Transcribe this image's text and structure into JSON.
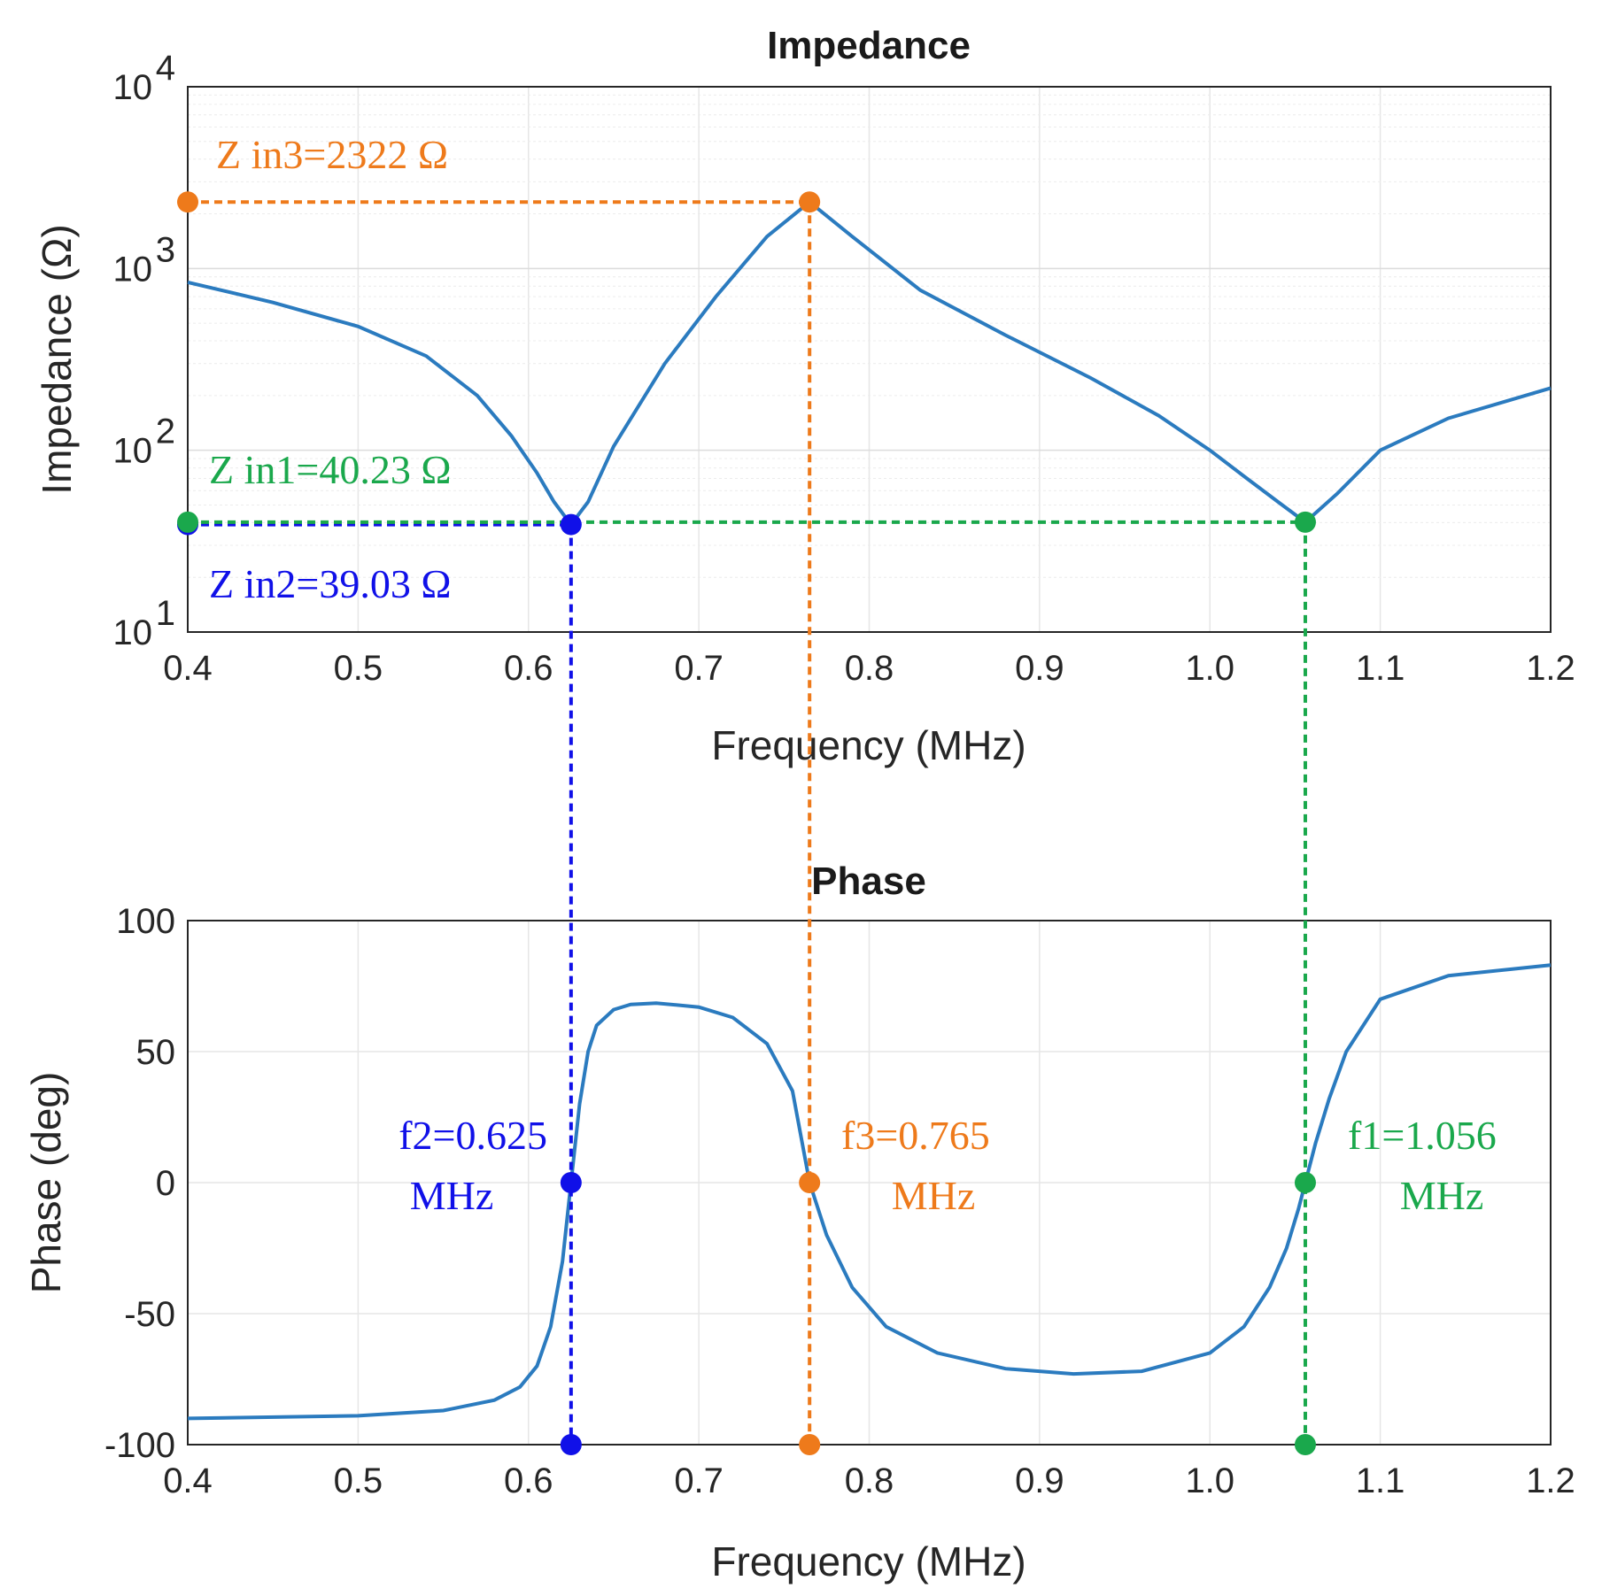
{
  "chart_data": [
    {
      "type": "line",
      "title": "Impedance",
      "xlabel": "Frequency (MHz)",
      "ylabel": "Impedance (Ω)",
      "yscale": "log",
      "xlim": [
        0.4,
        1.2
      ],
      "ylim": [
        10,
        10000
      ],
      "grid": true,
      "xticks": [
        "0.4",
        "0.5",
        "0.6",
        "0.7",
        "0.8",
        "0.9",
        "1.0",
        "1.1",
        "1.2"
      ],
      "yticks": [
        {
          "base": "10",
          "exp": "1"
        },
        {
          "base": "10",
          "exp": "2"
        },
        {
          "base": "10",
          "exp": "3"
        },
        {
          "base": "10",
          "exp": "4"
        }
      ],
      "color": "#2b7bbf",
      "series": [
        {
          "name": "Impedance",
          "x": [
            0.4,
            0.45,
            0.5,
            0.54,
            0.57,
            0.59,
            0.605,
            0.615,
            0.625,
            0.635,
            0.65,
            0.68,
            0.71,
            0.74,
            0.765,
            0.79,
            0.83,
            0.88,
            0.93,
            0.97,
            1.0,
            1.02,
            1.04,
            1.056,
            1.075,
            1.1,
            1.14,
            1.2
          ],
          "values": [
            840,
            650,
            480,
            330,
            200,
            120,
            75,
            52,
            39.03,
            52,
            105,
            300,
            700,
            1500,
            2322,
            1500,
            760,
            430,
            250,
            155,
            100,
            72,
            52,
            40.23,
            58,
            100,
            150,
            220
          ]
        }
      ],
      "markers": [
        {
          "x": 0.765,
          "y": 2322,
          "color": "#ee7a1b"
        },
        {
          "x": 0.625,
          "y": 39.03,
          "color": "#1010e8"
        },
        {
          "x": 1.056,
          "y": 40.23,
          "color": "#1aa84c"
        }
      ],
      "annotations": [
        {
          "text": "Z in3=2322 Ω",
          "color": "#ee7a1b"
        },
        {
          "text": "Z in1=40.23 Ω",
          "color": "#1aa84c"
        },
        {
          "text": "Z in2=39.03 Ω",
          "color": "#1010e8"
        }
      ]
    },
    {
      "type": "line",
      "title": "Phase",
      "xlabel": "Frequency (MHz)",
      "ylabel": "Phase (deg)",
      "xlim": [
        0.4,
        1.2
      ],
      "ylim": [
        -100,
        100
      ],
      "grid": true,
      "xticks": [
        "0.4",
        "0.5",
        "0.6",
        "0.7",
        "0.8",
        "0.9",
        "1.0",
        "1.1",
        "1.2"
      ],
      "yticks": [
        "-100",
        "-50",
        "0",
        "50",
        "100"
      ],
      "color": "#2b7bbf",
      "series": [
        {
          "name": "Phase",
          "x": [
            0.4,
            0.5,
            0.55,
            0.58,
            0.595,
            0.605,
            0.613,
            0.62,
            0.625,
            0.63,
            0.635,
            0.64,
            0.65,
            0.66,
            0.675,
            0.7,
            0.72,
            0.74,
            0.755,
            0.765,
            0.775,
            0.79,
            0.81,
            0.84,
            0.88,
            0.92,
            0.96,
            1.0,
            1.02,
            1.035,
            1.045,
            1.052,
            1.056,
            1.062,
            1.07,
            1.08,
            1.1,
            1.14,
            1.2
          ],
          "values": [
            -90,
            -89,
            -87,
            -83,
            -78,
            -70,
            -55,
            -30,
            0,
            30,
            50,
            60,
            66,
            68,
            68.5,
            67,
            63,
            53,
            35,
            0,
            -20,
            -40,
            -55,
            -65,
            -71,
            -73,
            -72,
            -65,
            -55,
            -40,
            -25,
            -10,
            0,
            15,
            32,
            50,
            70,
            79,
            83
          ]
        }
      ],
      "markers": [
        {
          "x": 0.625,
          "y": 0,
          "color": "#1010e8"
        },
        {
          "x": 0.625,
          "y": -100,
          "color": "#1010e8"
        },
        {
          "x": 0.765,
          "y": 0,
          "color": "#ee7a1b"
        },
        {
          "x": 0.765,
          "y": -100,
          "color": "#ee7a1b"
        },
        {
          "x": 1.056,
          "y": 0,
          "color": "#1aa84c"
        },
        {
          "x": 1.056,
          "y": -100,
          "color": "#1aa84c"
        }
      ],
      "annotations": [
        {
          "text": "f2=0.625",
          "unit": "MHz",
          "color": "#1010e8"
        },
        {
          "text": "f3=0.765",
          "unit": "MHz",
          "color": "#ee7a1b"
        },
        {
          "text": "f1=1.056",
          "unit": "MHz",
          "color": "#1aa84c"
        }
      ]
    }
  ]
}
